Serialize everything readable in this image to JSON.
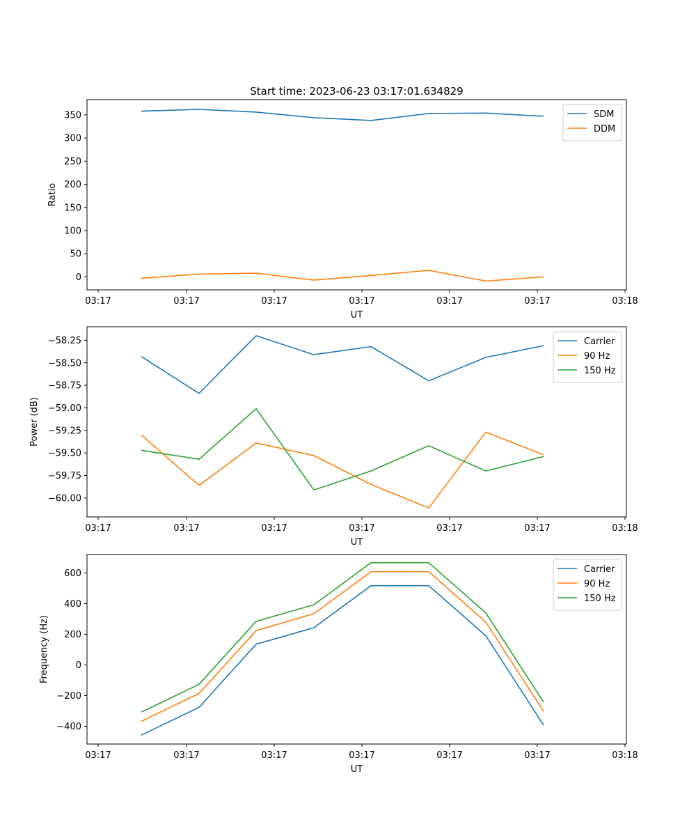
{
  "title": "Start time: 2023-06-23 03:17:01.634829",
  "chart_data": [
    {
      "type": "line",
      "xlabel": "UT",
      "ylabel": "Ratio",
      "x_tick_labels": [
        "03:17",
        "03:17",
        "03:17",
        "03:17",
        "03:17",
        "03:17",
        "03:18"
      ],
      "y_ticks": [
        0,
        50,
        100,
        150,
        200,
        250,
        300,
        350
      ],
      "y_tick_labels": [
        "0",
        "50",
        "100",
        "150",
        "200",
        "250",
        "300",
        "350"
      ],
      "ylim": [
        -28,
        383
      ],
      "legend_loc": "upper right",
      "series": [
        {
          "name": "SDM",
          "color": "#1f77b4",
          "values": [
            358,
            362,
            356,
            344,
            338,
            353,
            354,
            347
          ]
        },
        {
          "name": "DDM",
          "color": "#ff7f0e",
          "values": [
            -3,
            6,
            8,
            -7,
            3,
            14,
            -9,
            0
          ]
        }
      ]
    },
    {
      "type": "line",
      "xlabel": "UT",
      "ylabel": "Power (dB)",
      "x_tick_labels": [
        "03:17",
        "03:17",
        "03:17",
        "03:17",
        "03:17",
        "03:17",
        "03:18"
      ],
      "y_ticks": [
        -60.0,
        -59.75,
        -59.5,
        -59.25,
        -59.0,
        -58.75,
        -58.5,
        -58.25
      ],
      "y_tick_labels": [
        "−60.00",
        "−59.75",
        "−59.50",
        "−59.25",
        "−59.00",
        "−58.75",
        "−58.50",
        "−58.25"
      ],
      "ylim": [
        -60.21,
        -58.1
      ],
      "legend_loc": "upper right",
      "series": [
        {
          "name": "Carrier",
          "color": "#1f77b4",
          "values": [
            -58.43,
            -58.84,
            -58.2,
            -58.41,
            -58.32,
            -58.7,
            -58.44,
            -58.31
          ]
        },
        {
          "name": "90 Hz",
          "color": "#ff7f0e",
          "values": [
            -59.3,
            -59.86,
            -59.39,
            -59.53,
            -59.85,
            -60.11,
            -59.27,
            -59.52
          ]
        },
        {
          "name": "150 Hz",
          "color": "#2ca02c",
          "values": [
            -59.47,
            -59.57,
            -59.01,
            -59.91,
            -59.7,
            -59.42,
            -59.7,
            -59.54
          ]
        }
      ]
    },
    {
      "type": "line",
      "xlabel": "UT",
      "ylabel": "Frequency (Hz)",
      "x_tick_labels": [
        "03:17",
        "03:17",
        "03:17",
        "03:17",
        "03:17",
        "03:17",
        "03:18"
      ],
      "y_ticks": [
        -400,
        -200,
        0,
        200,
        400,
        600
      ],
      "y_tick_labels": [
        "−400",
        "−200",
        "0",
        "200",
        "400",
        "600"
      ],
      "ylim": [
        -516,
        720
      ],
      "legend_loc": "upper right",
      "series": [
        {
          "name": "Carrier",
          "color": "#1f77b4",
          "values": [
            -458,
            -277,
            135,
            243,
            517,
            517,
            190,
            -393
          ]
        },
        {
          "name": "90 Hz",
          "color": "#ff7f0e",
          "values": [
            -368,
            -186,
            224,
            334,
            608,
            608,
            279,
            -303
          ]
        },
        {
          "name": "150 Hz",
          "color": "#2ca02c",
          "values": [
            -308,
            -126,
            284,
            393,
            667,
            667,
            339,
            -243
          ]
        }
      ]
    }
  ]
}
